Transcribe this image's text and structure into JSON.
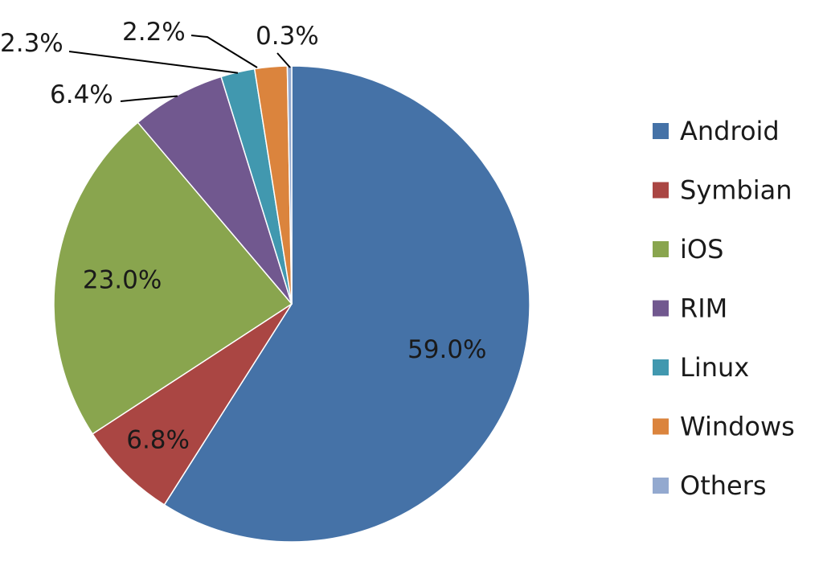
{
  "chart_data": {
    "type": "pie",
    "title": "",
    "categories": [
      "Android",
      "Symbian",
      "iOS",
      "RIM",
      "Linux",
      "Windows",
      "Others"
    ],
    "values": [
      59.0,
      6.8,
      23.0,
      6.4,
      2.3,
      2.2,
      0.3
    ],
    "labels": [
      "59.0%",
      "6.8%",
      "23.0%",
      "6.4%",
      "2.3%",
      "2.2%",
      "0.3%"
    ],
    "colors": [
      "#4572a7",
      "#aa4643",
      "#89a54e",
      "#71588f",
      "#4198af",
      "#db843d",
      "#93a9cf"
    ],
    "start_angle": "12 o'clock",
    "direction": "clockwise",
    "legend_position": "right"
  }
}
